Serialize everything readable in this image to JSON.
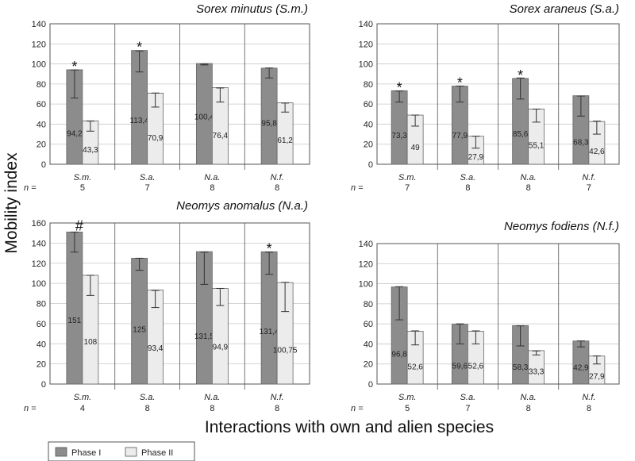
{
  "ylabel": "Mobility index",
  "xlabel": "Interactions with own and alien species",
  "n_label": "n =",
  "legend": [
    {
      "label": "Phase I",
      "color": "#8c8c8c"
    },
    {
      "label": "Phase II",
      "color": "#ececec"
    }
  ],
  "chart_data": [
    {
      "type": "bar",
      "title": "Sorex minutus (S.m.)",
      "categories": [
        "S.m.",
        "S.a.",
        "N.a.",
        "N.f."
      ],
      "n": [
        "5",
        "7",
        "8",
        "8"
      ],
      "ylim": [
        0,
        140
      ],
      "yticks": [
        0,
        20,
        40,
        60,
        80,
        100,
        120,
        140
      ],
      "grid": "horizontal",
      "series": [
        {
          "name": "Phase I",
          "values": [
            94.2,
            113.4,
            100.4,
            95.8
          ],
          "labels": [
            "94,2",
            "113,4",
            "100,4",
            "95,8"
          ],
          "err_low": [
            66,
            92,
            99,
            86
          ],
          "err_high": [
            94,
            113,
            100,
            96
          ]
        },
        {
          "name": "Phase II",
          "values": [
            43.3,
            70.9,
            76.4,
            61.2
          ],
          "labels": [
            "43,3",
            "70,9",
            "76,4",
            "61,2"
          ],
          "err_low": [
            33,
            57,
            62,
            52
          ],
          "err_high": [
            43,
            71,
            76,
            61
          ]
        }
      ],
      "marks": [
        "*",
        "*",
        "",
        ""
      ]
    },
    {
      "type": "bar",
      "title": "Sorex araneus (S.a.)",
      "categories": [
        "S.m.",
        "S.a.",
        "N.a.",
        "N.f."
      ],
      "n": [
        "7",
        "8",
        "8",
        "7"
      ],
      "ylim": [
        0,
        140
      ],
      "yticks": [
        0,
        20,
        40,
        60,
        80,
        100,
        120,
        140
      ],
      "grid": "horizontal",
      "series": [
        {
          "name": "Phase I",
          "values": [
            73.3,
            77.9,
            85.6,
            68.3
          ],
          "labels": [
            "73,3",
            "77,9",
            "85,6",
            "68,3"
          ],
          "err_low": [
            62,
            62,
            65,
            48
          ],
          "err_high": [
            73,
            78,
            86,
            68
          ]
        },
        {
          "name": "Phase II",
          "values": [
            49,
            27.9,
            55.1,
            42.6
          ],
          "labels": [
            "49",
            "27,9",
            "55,1",
            "42,6"
          ],
          "err_low": [
            38,
            16,
            42,
            30
          ],
          "err_high": [
            49,
            28,
            55,
            43
          ]
        }
      ],
      "marks": [
        "*",
        "*",
        "*",
        ""
      ]
    },
    {
      "type": "bar",
      "title": "Neomys anomalus (N.a.)",
      "categories": [
        "S.m.",
        "S.a.",
        "N.a.",
        "N.f."
      ],
      "n": [
        "4",
        "8",
        "8",
        "8"
      ],
      "ylim": [
        0,
        160
      ],
      "yticks": [
        0,
        20,
        40,
        60,
        80,
        100,
        120,
        140,
        160
      ],
      "grid": "horizontal",
      "series": [
        {
          "name": "Phase I",
          "values": [
            151,
            125,
            131.5,
            131.4
          ],
          "labels": [
            "151",
            "125",
            "131,5",
            "131,4"
          ],
          "err_low": [
            131,
            113,
            99,
            109
          ],
          "err_high": [
            151,
            125,
            131,
            131
          ]
        },
        {
          "name": "Phase II",
          "values": [
            108,
            93.4,
            94.9,
            100.75
          ],
          "labels": [
            "108",
            "93,4",
            "94,9",
            "100,75"
          ],
          "err_low": [
            88,
            76,
            78,
            72
          ],
          "err_high": [
            108,
            93,
            95,
            101
          ]
        }
      ],
      "marks": [
        "#",
        "",
        "",
        "*"
      ]
    },
    {
      "type": "bar",
      "title": "Neomys fodiens (N.f.)",
      "categories": [
        "S.m.",
        "S.a.",
        "N.a.",
        "N.f."
      ],
      "n": [
        "5",
        "7",
        "8",
        "8"
      ],
      "ylim": [
        0,
        140
      ],
      "yticks": [
        0,
        20,
        40,
        60,
        80,
        100,
        120,
        140
      ],
      "grid": "horizontal",
      "series": [
        {
          "name": "Phase I",
          "values": [
            96.8,
            59.6,
            58.3,
            42.9
          ],
          "labels": [
            "96,8",
            "59,6",
            "58,3",
            "42,9"
          ],
          "err_low": [
            64,
            40,
            38,
            37
          ],
          "err_high": [
            97,
            60,
            58,
            43
          ]
        },
        {
          "name": "Phase II",
          "values": [
            52.6,
            52.6,
            33.3,
            27.9
          ],
          "labels": [
            "52,6",
            "52,6",
            "33,3",
            "27,9"
          ],
          "err_low": [
            39,
            40,
            29,
            20
          ],
          "err_high": [
            53,
            53,
            33,
            28
          ]
        }
      ],
      "marks": [
        "",
        "",
        "",
        ""
      ]
    }
  ]
}
